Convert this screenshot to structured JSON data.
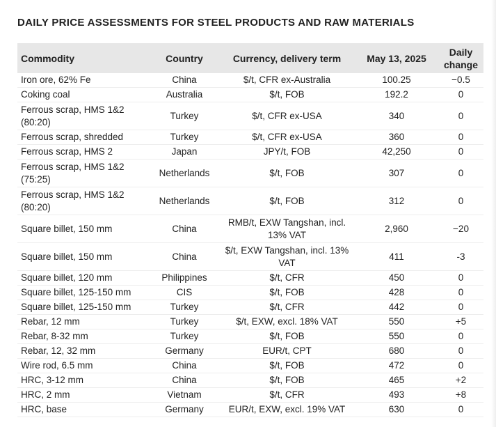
{
  "title": "DAILY PRICE ASSESSMENTS FOR STEEL PRODUCTS AND RAW MATERIALS",
  "headers": {
    "commodity": "Commodity",
    "country": "Country",
    "currency": "Currency, delivery term",
    "date": "May 13, 2025",
    "change_line1": "Daily",
    "change_line2": "change"
  },
  "rows": [
    {
      "commodity": "Iron ore, 62% Fe",
      "country": "China",
      "currency": "$/t, CFR ex-Australia",
      "price": "100.25",
      "change": "−0.5"
    },
    {
      "commodity": "Coking coal",
      "country": "Australia",
      "currency": "$/t, FOB",
      "price": "192.2",
      "change": "0"
    },
    {
      "commodity": "Ferrous scrap, HMS 1&2 (80:20)",
      "country": "Turkey",
      "currency": "$/t, CFR ex-USA",
      "price": "340",
      "change": "0"
    },
    {
      "commodity": "Ferrous scrap, shredded",
      "country": "Turkey",
      "currency": "$/t, CFR ex-USA",
      "price": "360",
      "change": "0"
    },
    {
      "commodity": "Ferrous scrap, HMS 2",
      "country": "Japan",
      "currency": "JPY/t, FOB",
      "price": "42,250",
      "change": "0"
    },
    {
      "commodity": "Ferrous scrap, HMS 1&2 (75:25)",
      "country": "Netherlands",
      "currency": "$/t, FOB",
      "price": "307",
      "change": "0"
    },
    {
      "commodity": "Ferrous scrap, HMS 1&2 (80:20)",
      "country": "Netherlands",
      "currency": "$/t, FOB",
      "price": "312",
      "change": "0"
    },
    {
      "commodity": "Square billet, 150 mm",
      "country": "China",
      "currency": "RMB/t, EXW Tangshan, incl. 13% VAT",
      "price": "2,960",
      "change": "−20"
    },
    {
      "commodity": "Square billet, 150 mm",
      "country": "China",
      "currency": "$/t, EXW Tangshan, incl. 13% VAT",
      "price": "411",
      "change": "-3"
    },
    {
      "commodity": "Square billet, 120 mm",
      "country": "Philippines",
      "currency": "$/t, CFR",
      "price": "450",
      "change": "0"
    },
    {
      "commodity": "Square billet, 125-150 mm",
      "country": "CIS",
      "currency": "$/t, FOB",
      "price": "428",
      "change": "0"
    },
    {
      "commodity": "Square billet, 125-150 mm",
      "country": "Turkey",
      "currency": "$/t, CFR",
      "price": "442",
      "change": "0"
    },
    {
      "commodity": "Rebar, 12 mm",
      "country": "Turkey",
      "currency": "$/t, EXW, excl. 18% VAT",
      "price": "550",
      "change": "+5"
    },
    {
      "commodity": "Rebar, 8-32 mm",
      "country": "Turkey",
      "currency": "$/t, FOB",
      "price": "550",
      "change": "0"
    },
    {
      "commodity": "Rebar, 12, 32 mm",
      "country": "Germany",
      "currency": "EUR/t, CPT",
      "price": "680",
      "change": "0"
    },
    {
      "commodity": "Wire rod, 6.5 mm",
      "country": "China",
      "currency": "$/t, FOB",
      "price": "472",
      "change": "0"
    },
    {
      "commodity": "HRC, 3-12 mm",
      "country": "China",
      "currency": "$/t, FOB",
      "price": "465",
      "change": "+2"
    },
    {
      "commodity": "HRC, 2 mm",
      "country": "Vietnam",
      "currency": "$/t, CFR",
      "price": "493",
      "change": "+8"
    },
    {
      "commodity": "HRC, base",
      "country": "Germany",
      "currency": "EUR/t, EXW, excl. 19% VAT",
      "price": "630",
      "change": "0"
    }
  ]
}
